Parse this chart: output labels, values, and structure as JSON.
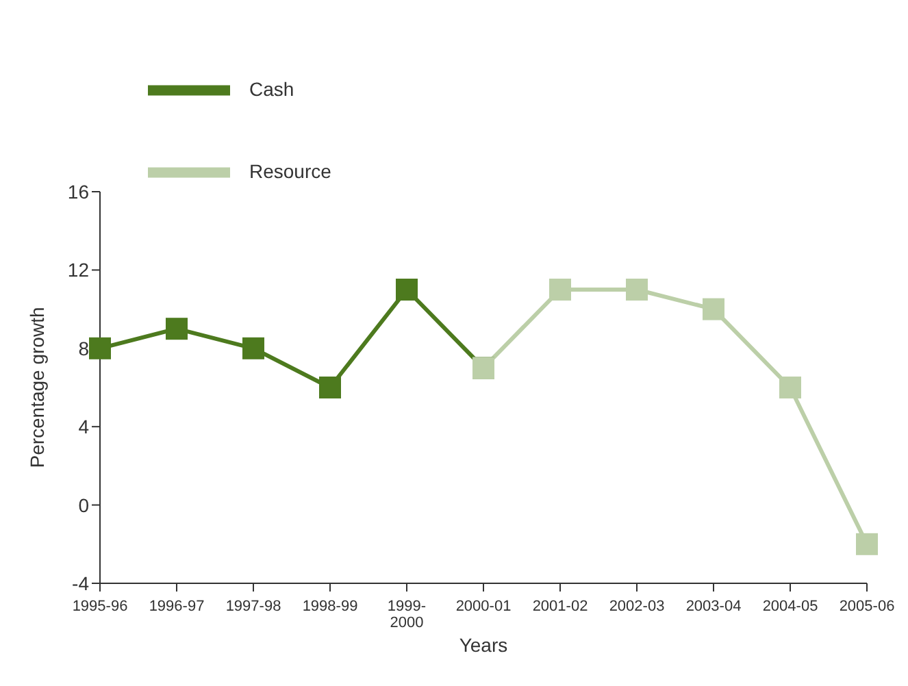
{
  "chart_data": {
    "type": "line",
    "xlabel": "Years",
    "ylabel": "Percentage growth",
    "categories": [
      "1995-96",
      "1996-97",
      "1997-98",
      "1998-99",
      "1999-2000",
      "2000-01",
      "2001-02",
      "2002-03",
      "2003-04",
      "2004-05",
      "2005-06"
    ],
    "series": [
      {
        "name": "Cash",
        "color": "#4d7a1e",
        "values": [
          8,
          9,
          8,
          6,
          11,
          7,
          null,
          null,
          null,
          null,
          null
        ]
      },
      {
        "name": "Resource",
        "color": "#bccfa8",
        "values": [
          null,
          null,
          null,
          null,
          null,
          7,
          11,
          11,
          10,
          6,
          -2
        ]
      }
    ],
    "ylim": [
      -4,
      16
    ],
    "yticks": [
      -4,
      0,
      4,
      8,
      12,
      16
    ],
    "grid": false,
    "legend": "top left",
    "marker": "square",
    "line_style": "solid"
  }
}
